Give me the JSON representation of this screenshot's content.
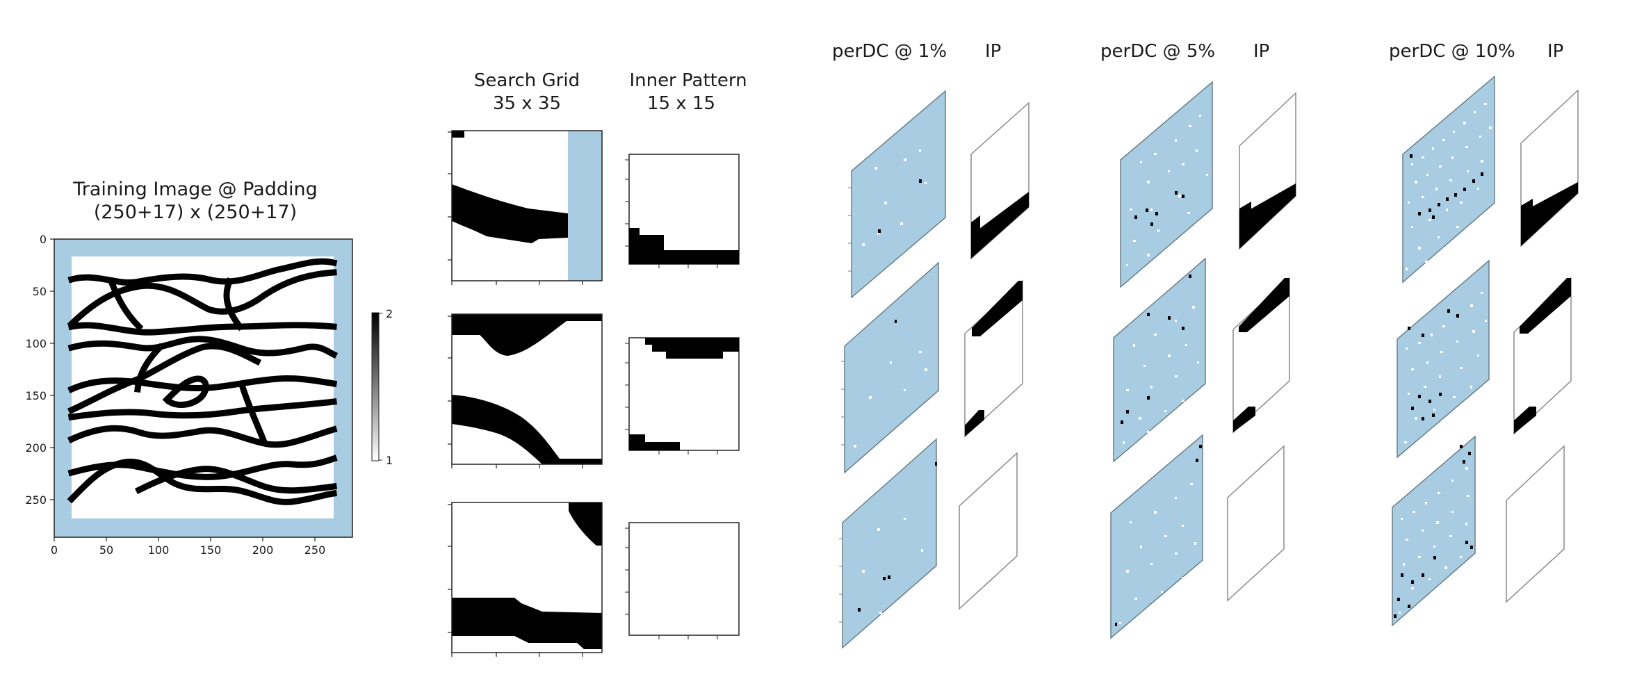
{
  "colors": {
    "background": "#ffffff",
    "padding_blue": "#a8cde2",
    "channel": "#000000",
    "sand": "#ffffff",
    "frame": "#222222",
    "ip_frame": "#8a8a8a"
  },
  "training_image": {
    "title_line1": "Training Image @ Padding",
    "title_line2": "(250+17) x (250+17)",
    "x_ticks": [
      "0",
      "50",
      "100",
      "150",
      "200",
      "250"
    ],
    "y_ticks": [
      "0",
      "50",
      "100",
      "150",
      "200",
      "250"
    ],
    "colorbar_top": "2",
    "colorbar_bottom": "1"
  },
  "search_grid": {
    "title_line1": "Search Grid",
    "title_line2": "35 x 35"
  },
  "inner_pattern": {
    "title_line1": "Inner Pattern",
    "title_line2": "15 x 15"
  },
  "perdc_groups": [
    {
      "label": "perDC @ 1%",
      "ip_label": "IP"
    },
    {
      "label": "perDC @ 5%",
      "ip_label": "IP"
    },
    {
      "label": "perDC @ 10%",
      "ip_label": "IP"
    }
  ]
}
